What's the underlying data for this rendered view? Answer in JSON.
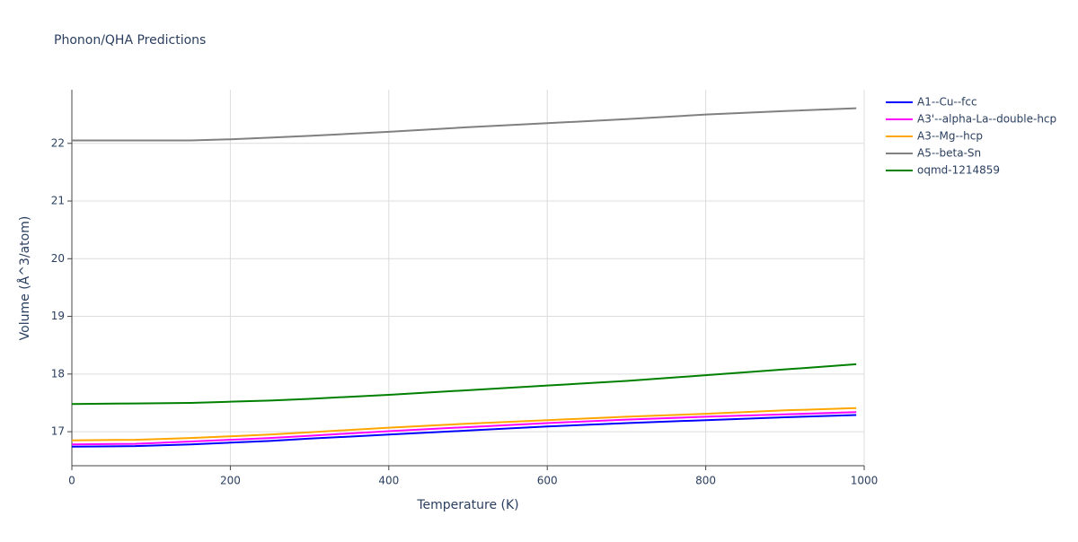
{
  "chart_data": {
    "type": "line",
    "title": "Phonon/QHA Predictions",
    "x_label": "Temperature (K)",
    "y_label": "Volume (Å^3/atom)",
    "x": [
      0,
      80,
      150,
      200,
      250,
      300,
      400,
      500,
      600,
      700,
      800,
      900,
      990
    ],
    "series": [
      {
        "name": "A1--Cu--fcc",
        "color": "#0000ff",
        "values": [
          16.74,
          16.75,
          16.78,
          16.81,
          16.84,
          16.88,
          16.95,
          17.02,
          17.09,
          17.15,
          17.2,
          17.25,
          17.29
        ]
      },
      {
        "name": "A3'--alpha-La--double-hcp",
        "color": "#ff00ff",
        "values": [
          16.78,
          16.79,
          16.83,
          16.86,
          16.89,
          16.93,
          17.01,
          17.08,
          17.15,
          17.21,
          17.26,
          17.3,
          17.34
        ]
      },
      {
        "name": "A3--Mg--hcp",
        "color": "#ffa500",
        "values": [
          16.85,
          16.86,
          16.89,
          16.92,
          16.95,
          16.99,
          17.07,
          17.14,
          17.2,
          17.26,
          17.31,
          17.37,
          17.41
        ]
      },
      {
        "name": "A5--beta-Sn",
        "color": "#808080",
        "values": [
          22.05,
          22.05,
          22.05,
          22.07,
          22.1,
          22.13,
          22.2,
          22.28,
          22.35,
          22.42,
          22.5,
          22.56,
          22.61
        ]
      },
      {
        "name": "oqmd-1214859",
        "color": "#008000",
        "values": [
          17.48,
          17.49,
          17.5,
          17.52,
          17.54,
          17.57,
          17.64,
          17.72,
          17.8,
          17.88,
          17.98,
          18.08,
          18.17
        ]
      }
    ],
    "xlim": [
      0,
      1000
    ],
    "xticks": [
      0,
      200,
      400,
      600,
      800,
      1000
    ],
    "ylim": [
      16.41,
      22.93
    ],
    "yticks": [
      17,
      18,
      19,
      20,
      21,
      22
    ],
    "grid": true,
    "legend": "right"
  }
}
